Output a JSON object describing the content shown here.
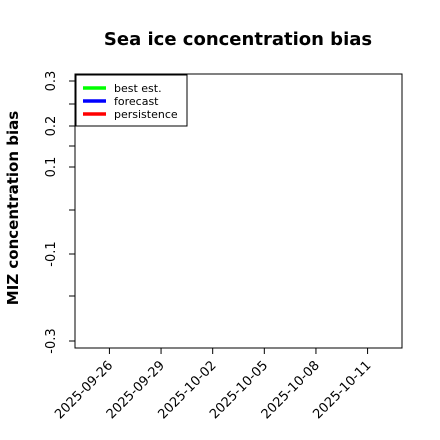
{
  "chart_data": {
    "type": "line",
    "title": "Sea ice concentration bias",
    "xlabel": "",
    "ylabel": "MIZ concentration bias",
    "xlim": [
      "2025-09-24",
      "2025-10-13"
    ],
    "ylim": [
      -0.32,
      0.32
    ],
    "x_ticks": [
      "2025-09-26",
      "2025-09-29",
      "2025-10-02",
      "2025-10-05",
      "2025-10-08",
      "2025-10-11"
    ],
    "highlight_tick": "2025-10-02",
    "highlight_color": "#228b22",
    "y_ticks": [
      {
        "value": 0.3,
        "label": "0.3"
      },
      {
        "value": 0.25,
        "label": ""
      },
      {
        "value": 0.2,
        "label": "0.2"
      },
      {
        "value": 0.15,
        "label": ""
      },
      {
        "value": 0.1,
        "label": "0.1"
      },
      {
        "value": 0.0,
        "label": ""
      },
      {
        "value": -0.1,
        "label": "-0.1"
      },
      {
        "value": -0.2,
        "label": ""
      },
      {
        "value": -0.3,
        "label": "-0.3"
      }
    ],
    "series": [
      {
        "name": "best est.",
        "color": "#00ff00",
        "values": []
      },
      {
        "name": "forecast",
        "color": "#0000ff",
        "values": []
      },
      {
        "name": "persistence",
        "color": "#ff0000",
        "values": []
      }
    ],
    "legend_position": "top-left",
    "grid": false
  }
}
